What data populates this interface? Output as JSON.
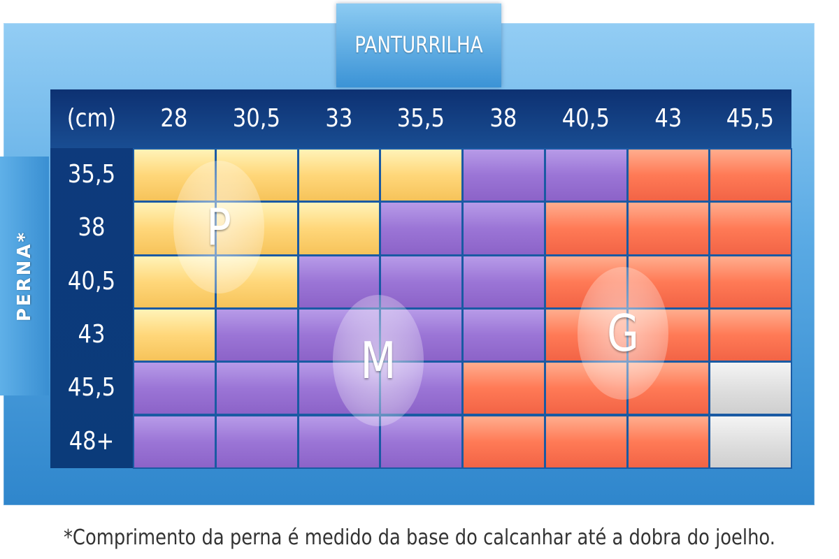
{
  "column_header": "PANTURRILHA",
  "row_header": "PERNA*",
  "unit_label": "(cm)",
  "columns": [
    "28",
    "30,5",
    "33",
    "35,5",
    "38",
    "40,5",
    "43",
    "45,5"
  ],
  "rows": [
    "35,5",
    "38",
    "40,5",
    "43",
    "45,5",
    "48+"
  ],
  "size_grid": [
    [
      "P",
      "P",
      "P",
      "P",
      "M",
      "M",
      "G",
      "G"
    ],
    [
      "P",
      "P",
      "P",
      "M",
      "M",
      "G",
      "G",
      "G"
    ],
    [
      "P",
      "P",
      "M",
      "M",
      "M",
      "G",
      "G",
      "G"
    ],
    [
      "P",
      "M",
      "M",
      "M",
      "M",
      "G",
      "G",
      "G"
    ],
    [
      "M",
      "M",
      "M",
      "M",
      "G",
      "G",
      "G",
      ""
    ],
    [
      "M",
      "M",
      "M",
      "M",
      "G",
      "G",
      "G",
      ""
    ]
  ],
  "size_labels": {
    "small": "P",
    "medium": "M",
    "large": "G"
  },
  "colors": {
    "P": "#ffd77a",
    "M": "#9b75d6",
    "G": "#ff7a56",
    "none": "#dcdcdc",
    "panel": "#0e3a7c",
    "frame": "#5aaae4"
  },
  "footnote": "*Comprimento da perna é medido da base do calcanhar até a dobra do joelho."
}
